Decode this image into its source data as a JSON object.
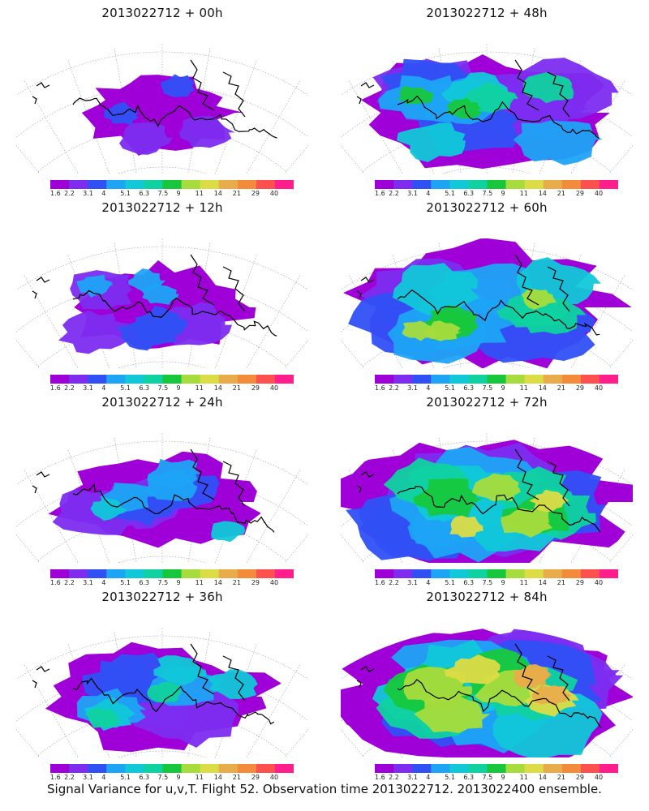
{
  "panels": [
    {
      "title": "2013022712 + 00h",
      "col": 0,
      "row": 0,
      "intensity": 0
    },
    {
      "title": "2013022712 + 12h",
      "col": 0,
      "row": 1,
      "intensity": 1
    },
    {
      "title": "2013022712 + 24h",
      "col": 0,
      "row": 2,
      "intensity": 2
    },
    {
      "title": "2013022712 + 36h",
      "col": 0,
      "row": 3,
      "intensity": 3
    },
    {
      "title": "2013022712 + 48h",
      "col": 1,
      "row": 0,
      "intensity": 4
    },
    {
      "title": "2013022712 + 60h",
      "col": 1,
      "row": 1,
      "intensity": 5
    },
    {
      "title": "2013022712 + 72h",
      "col": 1,
      "row": 2,
      "intensity": 6
    },
    {
      "title": "2013022712 + 84h",
      "col": 1,
      "row": 3,
      "intensity": 7
    }
  ],
  "colorbar": {
    "labels": [
      "1.6",
      "2.2",
      "3.1",
      "4",
      "5.1",
      "6.3",
      "7.5",
      "9",
      "11",
      "14",
      "21",
      "29",
      "40"
    ],
    "colors": [
      "#9f00d7",
      "#7d2cf0",
      "#3050f5",
      "#1ea4f5",
      "#11c8d8",
      "#10d2a0",
      "#17c83d",
      "#a6dc3d",
      "#dcdc46",
      "#e8ad4a",
      "#f28b3a",
      "#ff5050",
      "#ff1e8c"
    ]
  },
  "caption": "Signal Variance for u,v,T. Flight 52. Observation time 2013022712. 2013022400 ensemble."
}
